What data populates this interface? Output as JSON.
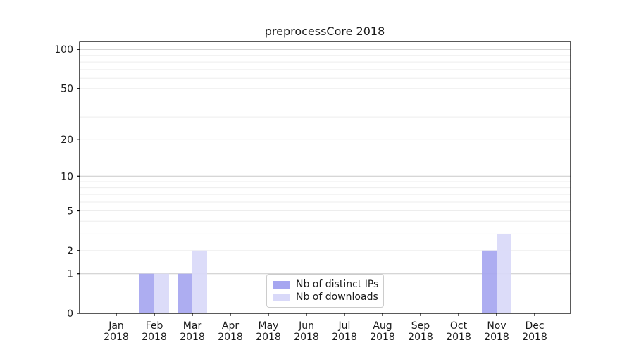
{
  "chart_data": {
    "type": "bar",
    "title": "preprocessCore 2018",
    "categories": [
      "Jan",
      "Feb",
      "Mar",
      "Apr",
      "May",
      "Jun",
      "Jul",
      "Aug",
      "Sep",
      "Oct",
      "Nov",
      "Dec"
    ],
    "category_year": "2018",
    "series": [
      {
        "name": "Nb of distinct IPs",
        "color": "#a6a6f0",
        "values": [
          0,
          1,
          1,
          0,
          0,
          0,
          0,
          0,
          0,
          0,
          2,
          0
        ]
      },
      {
        "name": "Nb of downloads",
        "color": "#d9d9f9",
        "values": [
          0,
          1,
          2,
          0,
          0,
          0,
          0,
          0,
          0,
          0,
          3,
          0
        ]
      }
    ],
    "xlabel": "",
    "ylabel": "",
    "yscale": "log1p",
    "ylim": [
      0,
      115
    ],
    "y_ticks": [
      0,
      1,
      2,
      5,
      10,
      20,
      50,
      100
    ],
    "grid": {
      "major_lines": [
        1,
        10,
        100
      ],
      "minor_lines": [
        2,
        3,
        4,
        5,
        6,
        7,
        8,
        9,
        20,
        30,
        40,
        50,
        60,
        70,
        80,
        90
      ],
      "major_color": "#c9c9c9",
      "minor_color": "#ededed"
    },
    "legend_position": "lower center",
    "axis_color": "#000000"
  }
}
